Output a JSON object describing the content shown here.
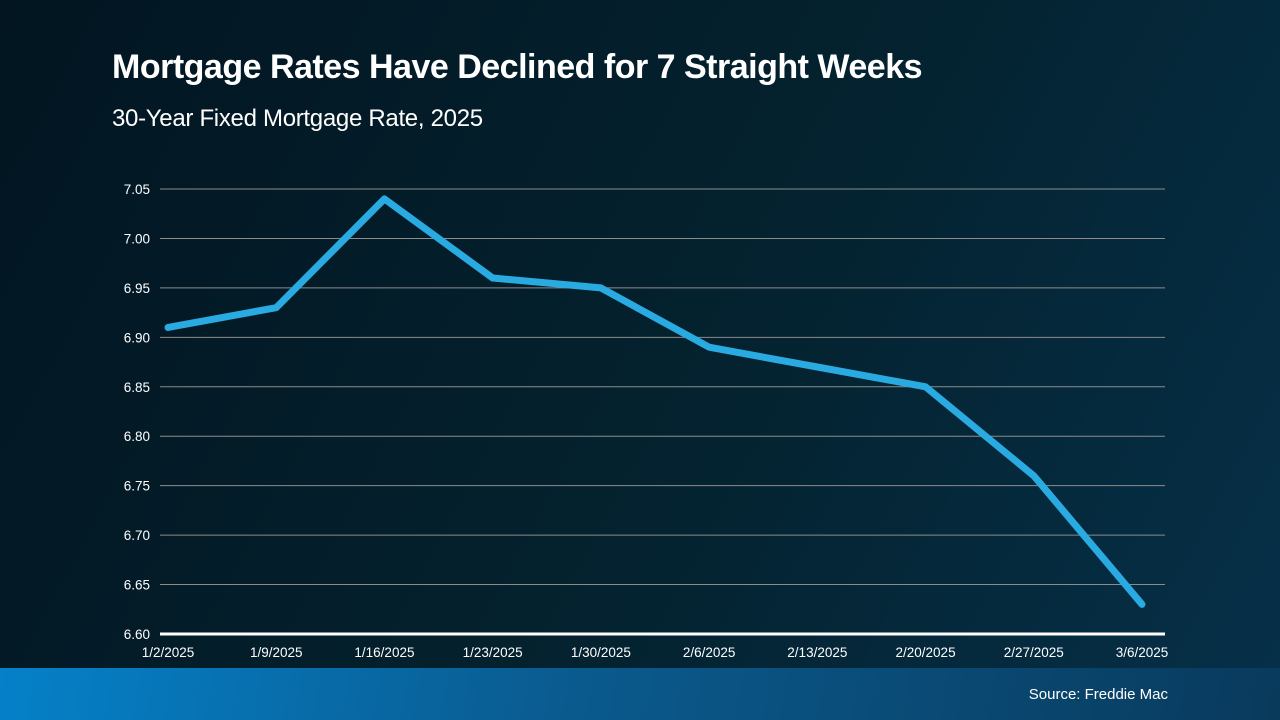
{
  "slide": {
    "title": "Mortgage Rates Have Declined for 7 Straight Weeks",
    "subtitle": "30-Year Fixed Mortgage Rate, 2025",
    "source": "Source: Freddie Mac"
  },
  "colors": {
    "background_top": "#021521",
    "background_bottom": "#063049",
    "line": "#29ABE2",
    "gridline": "#8C8C8C",
    "axis": "#FFFFFF",
    "text": "#FFFFFF",
    "footer_left": "#0581C9",
    "footer_right": "#093A5C"
  },
  "chart_data": {
    "type": "line",
    "title": "Mortgage Rates Have Declined for 7 Straight Weeks",
    "subtitle": "30-Year Fixed Mortgage Rate, 2025",
    "x": [
      "1/2/2025",
      "1/9/2025",
      "1/16/2025",
      "1/23/2025",
      "1/30/2025",
      "2/6/2025",
      "2/13/2025",
      "2/20/2025",
      "2/27/2025",
      "3/6/2025"
    ],
    "series": [
      {
        "name": "30-Year Fixed Mortgage Rate",
        "values": [
          6.91,
          6.93,
          7.04,
          6.96,
          6.95,
          6.89,
          6.87,
          6.85,
          6.76,
          6.63
        ]
      }
    ],
    "xlabel": "",
    "ylabel": "",
    "ylim": [
      6.6,
      7.05
    ],
    "ytick_step": 0.05,
    "ytick_format_decimals": 2,
    "grid": true,
    "legend": "none",
    "source": "Source: Freddie Mac"
  }
}
